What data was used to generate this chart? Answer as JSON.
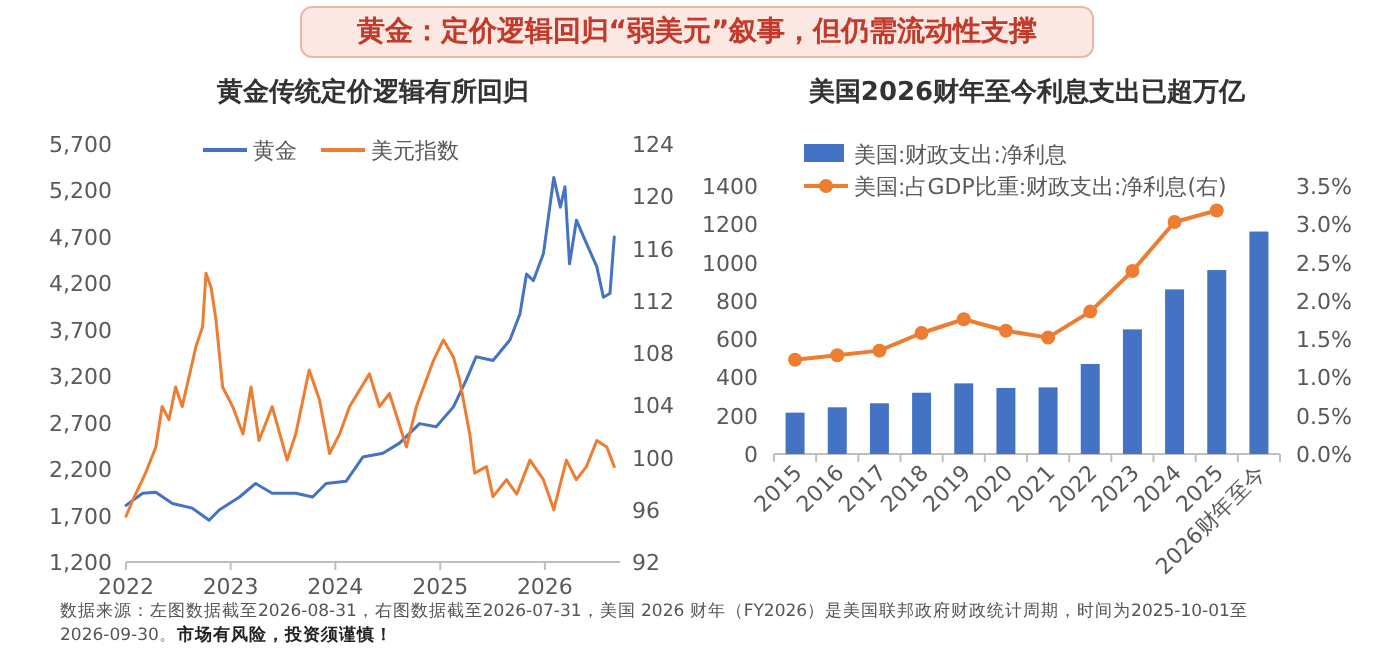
{
  "chart_data": [
    {
      "type": "line",
      "title": "黄金传统定价逻辑有所回归",
      "annotations": [
        "黄金：定价逻辑回归“弱美元”叙事，但仍需流动性支撑"
      ],
      "xlim": [
        "2022-01-01",
        "2026-09-20"
      ],
      "xticks": [
        "2022",
        "2023",
        "2024",
        "2025",
        "2026"
      ],
      "ylim": [
        1200,
        5700
      ],
      "yticks": [
        {
          "value": 1200,
          "label": "1,200"
        },
        {
          "value": 1700,
          "label": "1,700"
        },
        {
          "value": 2200,
          "label": "2,200"
        },
        {
          "value": 2700,
          "label": "2,700"
        },
        {
          "value": 3200,
          "label": "3,200"
        },
        {
          "value": 3700,
          "label": "3,700"
        },
        {
          "value": 4200,
          "label": "4,200"
        },
        {
          "value": 4700,
          "label": "4,700"
        },
        {
          "value": 5200,
          "label": "5,200"
        },
        {
          "value": 5700,
          "label": "5,700"
        }
      ],
      "y2lim": [
        92,
        124
      ],
      "y2ticks": [
        92,
        96,
        100,
        104,
        108,
        112,
        116,
        120,
        124
      ],
      "legend": "top",
      "series": [
        {
          "name": "黄金",
          "color": "#4472c4",
          "x": [
            "2022-01-01",
            "2022-02-28",
            "2022-04-15",
            "2022-06-12",
            "2022-08-20",
            "2022-10-18",
            "2022-11-22",
            "2023-02-01",
            "2023-03-29",
            "2023-05-26",
            "2023-08-16",
            "2023-10-14",
            "2023-11-30",
            "2024-02-08",
            "2024-04-06",
            "2024-06-15",
            "2024-08-12",
            "2024-10-21",
            "2024-12-18",
            "2025-02-16",
            "2025-04-02",
            "2025-05-06",
            "2025-07-04",
            "2025-09-01",
            "2025-10-06",
            "2025-10-29",
            "2025-11-22",
            "2025-12-27",
            "2026-02-01",
            "2026-02-24",
            "2026-03-12",
            "2026-03-28",
            "2026-04-21",
            "2026-05-26",
            "2026-07-01",
            "2026-07-24",
            "2026-08-16",
            "2026-08-31"
          ],
          "values": [
            1810,
            1940,
            1950,
            1830,
            1780,
            1650,
            1760,
            1900,
            2045,
            1940,
            1940,
            1900,
            2045,
            2070,
            2330,
            2370,
            2480,
            2690,
            2655,
            2870,
            3160,
            3410,
            3370,
            3590,
            3870,
            4300,
            4230,
            4520,
            5340,
            5020,
            5240,
            4410,
            4880,
            4630,
            4380,
            4050,
            4090,
            4700
          ]
        },
        {
          "name": "美元指数",
          "color": "#ed7d31",
          "axis": "y2",
          "x": [
            "2022-01-01",
            "2022-01-24",
            "2022-03-10",
            "2022-04-15",
            "2022-05-07",
            "2022-05-31",
            "2022-06-23",
            "2022-07-16",
            "2022-09-02",
            "2022-09-25",
            "2022-10-07",
            "2022-10-25",
            "2022-11-11",
            "2022-12-04",
            "2023-01-08",
            "2023-02-13",
            "2023-03-13",
            "2023-04-10",
            "2023-05-26",
            "2023-07-17",
            "2023-08-16",
            "2023-10-02",
            "2023-11-07",
            "2023-12-12",
            "2024-01-16",
            "2024-02-20",
            "2024-04-29",
            "2024-06-03",
            "2024-07-08",
            "2024-09-05",
            "2024-10-10",
            "2024-12-08",
            "2025-01-12",
            "2025-02-16",
            "2025-03-10",
            "2025-04-14",
            "2025-05-01",
            "2025-06-11",
            "2025-07-04",
            "2025-08-20",
            "2025-09-25",
            "2025-11-10",
            "2025-12-27",
            "2026-02-01",
            "2026-03-17",
            "2026-04-21",
            "2026-05-26",
            "2026-07-01",
            "2026-08-05",
            "2026-08-31"
          ],
          "values": [
            95.5,
            96.7,
            98.8,
            100.8,
            103.9,
            102.9,
            105.4,
            103.9,
            108.5,
            110.0,
            114.1,
            113.0,
            110.5,
            105.4,
            103.9,
            101.8,
            105.4,
            101.3,
            103.9,
            99.8,
            101.8,
            106.7,
            104.4,
            100.3,
            101.8,
            103.9,
            106.4,
            103.9,
            104.9,
            100.8,
            103.9,
            107.4,
            109.0,
            107.7,
            105.9,
            101.8,
            98.8,
            99.3,
            97.0,
            98.3,
            97.2,
            99.8,
            98.3,
            96.0,
            99.8,
            98.3,
            99.3,
            101.3,
            100.8,
            99.3
          ]
        }
      ]
    },
    {
      "type": "bar",
      "title": "美国2026财年至今利息支出已超万亿",
      "annotations": [
        "数据来源：左图数据截至2026-08-31，右图数据截至2026-07-31，美国 2026 财年（FY2026）是美国联邦政府财政统计周期，时间为2025-10-01至2026-09-30。",
        "市场有风险，投资须谨慎！"
      ],
      "categories": [
        "2015",
        "2016",
        "2017",
        "2018",
        "2019",
        "2020",
        "2021",
        "2022",
        "2023",
        "2024",
        "2025",
        "2026财年至今"
      ],
      "ylim": [
        0,
        1400
      ],
      "yticks": [
        0,
        200,
        400,
        600,
        800,
        1000,
        1200,
        1400
      ],
      "y2lim": [
        0,
        3.5
      ],
      "y2ticks": [
        {
          "value": 0,
          "label": "0.0%"
        },
        {
          "value": 0.5,
          "label": "0.5%"
        },
        {
          "value": 1,
          "label": "1.0%"
        },
        {
          "value": 1.5,
          "label": "1.5%"
        },
        {
          "value": 2,
          "label": "2.0%"
        },
        {
          "value": 2.5,
          "label": "2.5%"
        },
        {
          "value": 3,
          "label": "3.0%"
        },
        {
          "value": 3.5,
          "label": "3.5%"
        }
      ],
      "legend": "top left",
      "series": [
        {
          "name": "美国:财政支出:净利息",
          "color": "#4472c4",
          "values": [
            216,
            244,
            265,
            320,
            369,
            345,
            348,
            470,
            651,
            860,
            961,
            1162
          ]
        },
        {
          "name": "美国:占GDP比重:财政支出:净利息(右)",
          "color": "#ed7d31",
          "type": "line",
          "axis": "y2",
          "marker": "circle",
          "values": [
            1.23,
            1.29,
            1.35,
            1.58,
            1.76,
            1.61,
            1.52,
            1.86,
            2.39,
            3.03,
            3.18,
            null
          ]
        }
      ]
    }
  ]
}
